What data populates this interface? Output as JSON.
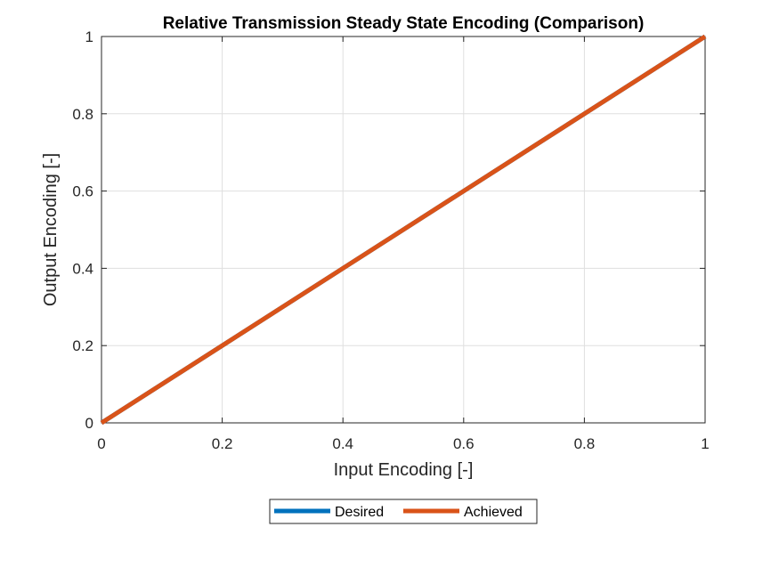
{
  "chart_data": {
    "type": "line",
    "title": "Relative Transmission Steady State Encoding (Comparison)",
    "xlabel": "Input Encoding [-]",
    "ylabel": "Output Encoding [-]",
    "xlim": [
      0,
      1
    ],
    "ylim": [
      0,
      1
    ],
    "xticks": [
      "0",
      "0.2",
      "0.4",
      "0.6",
      "0.8",
      "1"
    ],
    "yticks": [
      "0",
      "0.2",
      "0.4",
      "0.6",
      "0.8",
      "1"
    ],
    "grid": true,
    "legend_position": "bottom-outside",
    "series": [
      {
        "name": "Desired",
        "color": "#0072BD",
        "x": [
          0,
          1
        ],
        "y": [
          0,
          1
        ]
      },
      {
        "name": "Achieved",
        "color": "#D95319",
        "x": [
          0,
          1
        ],
        "y": [
          0,
          1
        ]
      }
    ]
  }
}
